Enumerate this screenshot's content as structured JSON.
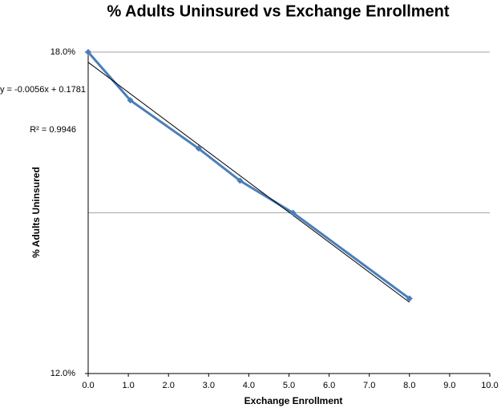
{
  "chart_data": {
    "type": "line",
    "title": "% Adults Uninsured vs Exchange Enrollment",
    "x_label": "Exchange Enrollment",
    "y_label": "% Adults Uninsured",
    "x": [
      0,
      1.05,
      2.75,
      3.78,
      5.1,
      8.0
    ],
    "series": [
      {
        "name": "% Adults Uninsured",
        "color": "#4a7ebb",
        "values": [
          18.0,
          17.1,
          16.2,
          15.6,
          15.0,
          13.4
        ]
      }
    ],
    "xlim": [
      0,
      10
    ],
    "xticks": [
      {
        "value": 0,
        "label": "0.0"
      },
      {
        "value": 1,
        "label": "1.0"
      },
      {
        "value": 2,
        "label": "2.0"
      },
      {
        "value": 3,
        "label": "3.0"
      },
      {
        "value": 4,
        "label": "4.0"
      },
      {
        "value": 5,
        "label": "5.0"
      },
      {
        "value": 6,
        "label": "6.0"
      },
      {
        "value": 7,
        "label": "7.0"
      },
      {
        "value": 8,
        "label": "8.0"
      },
      {
        "value": 9,
        "label": "9.0"
      },
      {
        "value": 10,
        "label": "10.0"
      }
    ],
    "ylim": [
      12,
      18
    ],
    "yticks": [
      {
        "value": 12,
        "label": "12.0%"
      },
      {
        "value": 18,
        "label": "18.0%"
      }
    ],
    "grid_lines": [
      15,
      18
    ],
    "trendline": {
      "slope": -0.56,
      "intercept": 17.81,
      "color": "#000000",
      "equation": "y = -0.0056x + 0.1781",
      "r_squared": "R² = 0.9946"
    }
  }
}
